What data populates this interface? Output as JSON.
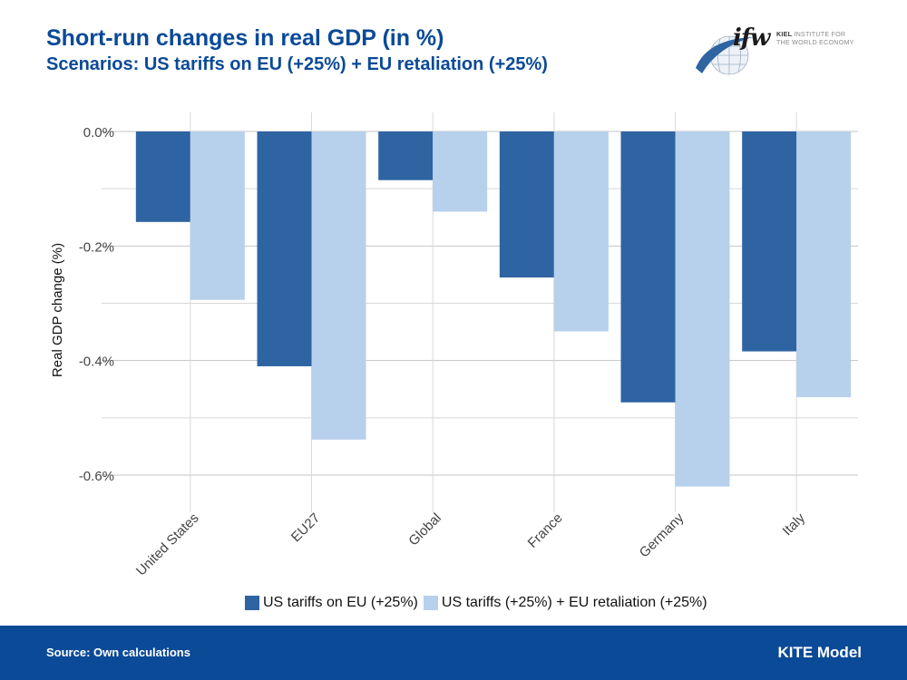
{
  "header": {
    "title": "Short-run changes in real GDP (in %)",
    "subtitle": "Scenarios: US tariffs on EU (+25%) + EU retaliation (+25%)"
  },
  "logo": {
    "mark": "ifw",
    "line1_bold": "KIEL",
    "line1_rest": " INSTITUTE FOR",
    "line2": "THE WORLD ECONOMY",
    "icon": "globe-swoosh-icon"
  },
  "chart_data": {
    "type": "bar",
    "ylabel": "Real GDP change (%)",
    "xlabel": "",
    "ylim": [
      -0.65,
      0.0
    ],
    "yticks": [
      0.0,
      -0.2,
      -0.4,
      -0.6
    ],
    "ytick_labels": [
      "0.0%",
      "-0.2%",
      "-0.4%",
      "-0.6%"
    ],
    "categories": [
      "United States",
      "EU27",
      "Global",
      "France",
      "Germany",
      "Italy"
    ],
    "series": [
      {
        "name": "US tariffs on EU (+25%)",
        "color": "#2f64a3",
        "values": [
          -0.158,
          -0.41,
          -0.085,
          -0.255,
          -0.473,
          -0.384
        ]
      },
      {
        "name": "US tariffs (+25%) + EU retaliation (+25%)",
        "color": "#b7d0ec",
        "values": [
          -0.294,
          -0.538,
          -0.14,
          -0.349,
          -0.62,
          -0.464
        ]
      }
    ],
    "grid": true,
    "legend_position": "bottom"
  },
  "footer": {
    "source": "Source: Own calculations",
    "model": "KITE Model"
  },
  "colors": {
    "brand_blue": "#0b4a97",
    "series_dark": "#2f64a3",
    "series_light": "#b7d0ec"
  }
}
